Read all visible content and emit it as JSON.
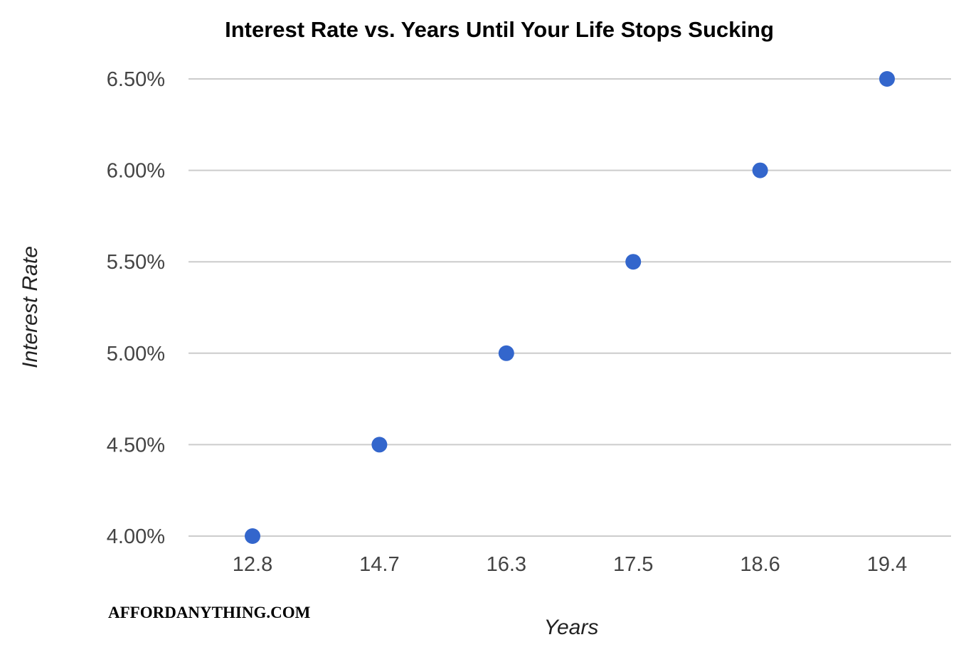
{
  "chart_data": {
    "type": "scatter",
    "title": "Interest Rate vs. Years Until Your Life Stops Sucking",
    "xlabel": "Years",
    "ylabel": "Interest Rate",
    "x_tick_labels": [
      "12.8",
      "14.7",
      "16.3",
      "17.5",
      "18.6",
      "19.4"
    ],
    "y_tick_labels": [
      "6.50%",
      "6.00%",
      "5.50%",
      "5.00%",
      "4.50%",
      "4.00%"
    ],
    "y_ticks": [
      6.5,
      6.0,
      5.5,
      5.0,
      4.5,
      4.0
    ],
    "ylim": [
      4.0,
      6.5
    ],
    "grid": true,
    "x_axis_kind": "categorical",
    "points": [
      {
        "x": 12.8,
        "y": 4.0
      },
      {
        "x": 14.7,
        "y": 4.5
      },
      {
        "x": 16.3,
        "y": 5.0
      },
      {
        "x": 17.5,
        "y": 5.5
      },
      {
        "x": 18.6,
        "y": 6.0
      },
      {
        "x": 19.4,
        "y": 6.5
      }
    ],
    "point_color": "#3366cc",
    "gridline_color": "#cccccc"
  },
  "watermark": "AFFORDANYTHING.COM"
}
